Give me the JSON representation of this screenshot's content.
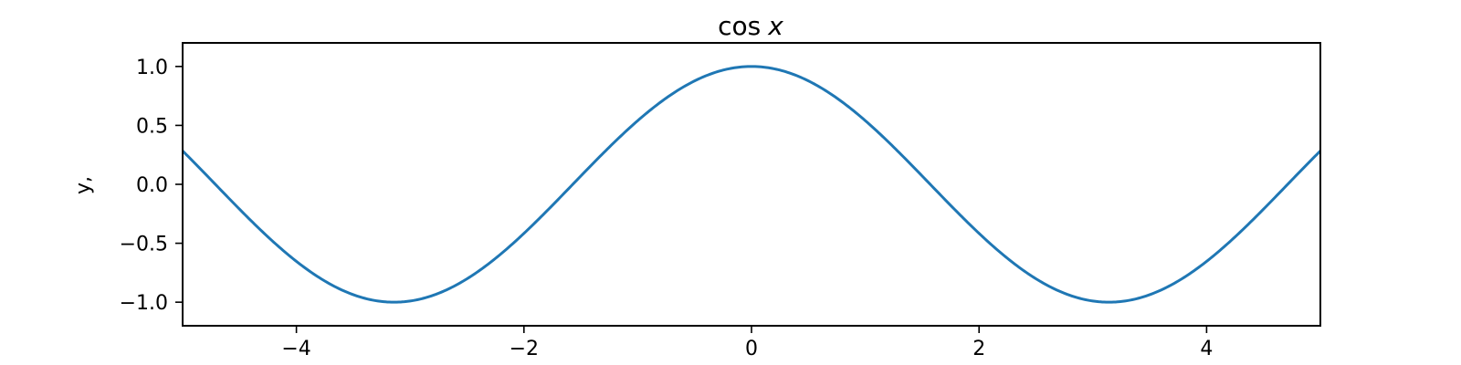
{
  "chart_data": {
    "type": "line",
    "title": {
      "func": "cos",
      "var": "x"
    },
    "xlabel": "",
    "ylabel": "y,",
    "xlim": [
      -5,
      5
    ],
    "ylim": [
      -1.2,
      1.2
    ],
    "xticks": [
      -4,
      -2,
      0,
      2,
      4
    ],
    "xtick_labels": [
      "−4",
      "−2",
      "0",
      "2",
      "4"
    ],
    "yticks": [
      1.0,
      0.5,
      0.0,
      -0.5,
      -1.0
    ],
    "ytick_labels": [
      "1.0",
      "0.5",
      "0.0",
      "−0.5",
      "−1.0"
    ],
    "grid": false,
    "series": [
      {
        "function": "cos",
        "color": "#1f77b4",
        "x": [
          -5.0,
          -4.5,
          -4.0,
          -3.5,
          -3.0,
          -2.5,
          -2.0,
          -1.5,
          -1.0,
          -0.5,
          0.0,
          0.5,
          1.0,
          1.5,
          2.0,
          2.5,
          3.0,
          3.5,
          4.0,
          4.5,
          5.0
        ],
        "y": [
          0.284,
          -0.211,
          -0.654,
          -0.936,
          -0.99,
          -0.801,
          -0.416,
          0.071,
          0.54,
          0.878,
          1.0,
          0.878,
          0.54,
          0.071,
          -0.416,
          -0.801,
          -0.99,
          -0.936,
          -0.654,
          -0.211,
          0.284
        ]
      }
    ]
  }
}
